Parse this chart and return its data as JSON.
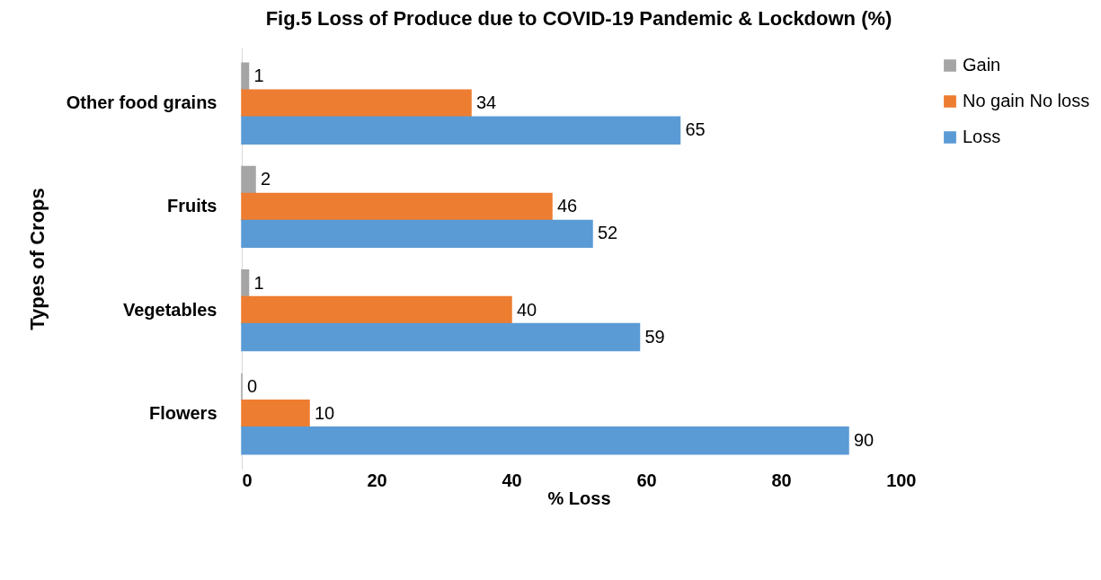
{
  "chart_data": {
    "type": "bar",
    "orientation": "horizontal",
    "title": "Fig.5 Loss of Produce due to COVID-19 Pandemic & Lockdown (%)",
    "xlabel": "% Loss",
    "ylabel": "Types of Crops",
    "categories": [
      "Other food grains",
      "Fruits",
      "Vegetables",
      "Flowers"
    ],
    "series": [
      {
        "name": "Gain",
        "color": "#a5a5a5",
        "values": [
          1,
          2,
          1,
          0
        ]
      },
      {
        "name": "No gain No loss",
        "color": "#ed7d31",
        "values": [
          34,
          46,
          40,
          10
        ]
      },
      {
        "name": "Loss",
        "color": "#5b9bd5",
        "values": [
          65,
          52,
          59,
          90
        ]
      }
    ],
    "xlim": [
      0,
      100
    ],
    "xticks": [
      0,
      20,
      40,
      60,
      80,
      100
    ],
    "grid": false,
    "legend": "right",
    "data_labels": true
  }
}
